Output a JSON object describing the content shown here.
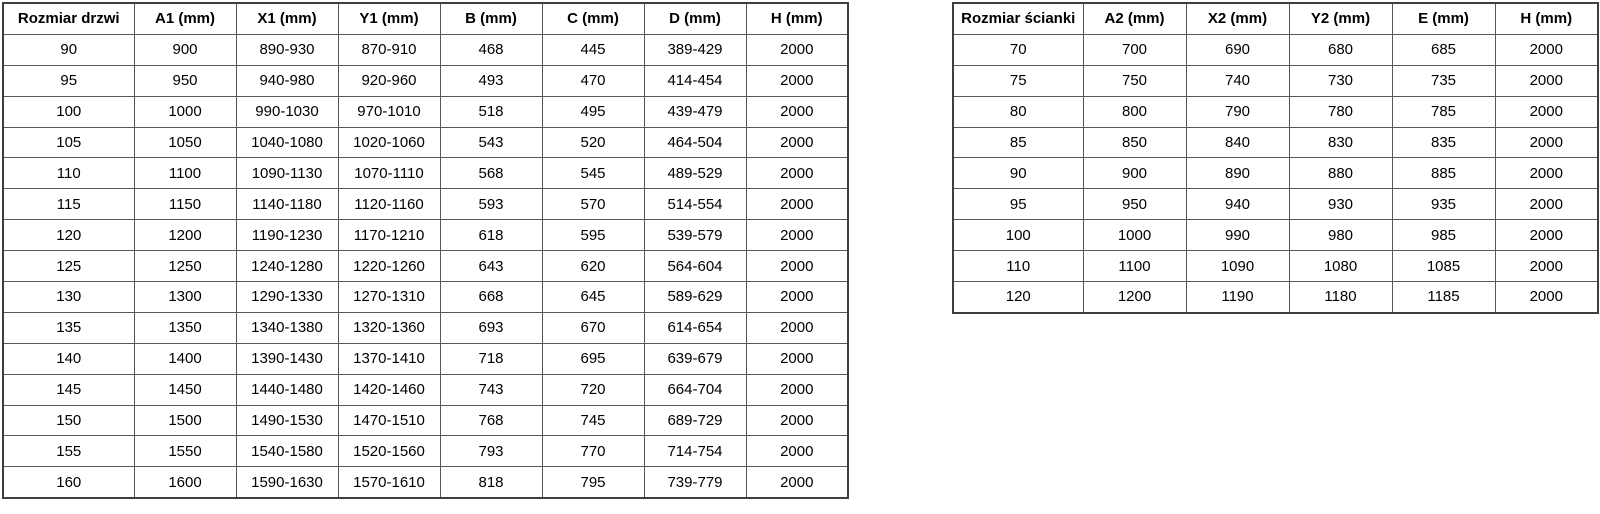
{
  "colors": {
    "background": "#ffffff",
    "text": "#000000",
    "inner_border": "#595959",
    "outer_border": "#3f3f3f"
  },
  "tables": {
    "doors": {
      "title": "Rozmiar drzwi",
      "columns": [
        "Rozmiar drzwi",
        "A1 (mm)",
        "X1 (mm)",
        "Y1 (mm)",
        "B (mm)",
        "C (mm)",
        "D (mm)",
        "H (mm)"
      ],
      "rows": [
        [
          "90",
          "900",
          "890-930",
          "870-910",
          "468",
          "445",
          "389-429",
          "2000"
        ],
        [
          "95",
          "950",
          "940-980",
          "920-960",
          "493",
          "470",
          "414-454",
          "2000"
        ],
        [
          "100",
          "1000",
          "990-1030",
          "970-1010",
          "518",
          "495",
          "439-479",
          "2000"
        ],
        [
          "105",
          "1050",
          "1040-1080",
          "1020-1060",
          "543",
          "520",
          "464-504",
          "2000"
        ],
        [
          "110",
          "1100",
          "1090-1130",
          "1070-1110",
          "568",
          "545",
          "489-529",
          "2000"
        ],
        [
          "115",
          "1150",
          "1140-1180",
          "1120-1160",
          "593",
          "570",
          "514-554",
          "2000"
        ],
        [
          "120",
          "1200",
          "1190-1230",
          "1170-1210",
          "618",
          "595",
          "539-579",
          "2000"
        ],
        [
          "125",
          "1250",
          "1240-1280",
          "1220-1260",
          "643",
          "620",
          "564-604",
          "2000"
        ],
        [
          "130",
          "1300",
          "1290-1330",
          "1270-1310",
          "668",
          "645",
          "589-629",
          "2000"
        ],
        [
          "135",
          "1350",
          "1340-1380",
          "1320-1360",
          "693",
          "670",
          "614-654",
          "2000"
        ],
        [
          "140",
          "1400",
          "1390-1430",
          "1370-1410",
          "718",
          "695",
          "639-679",
          "2000"
        ],
        [
          "145",
          "1450",
          "1440-1480",
          "1420-1460",
          "743",
          "720",
          "664-704",
          "2000"
        ],
        [
          "150",
          "1500",
          "1490-1530",
          "1470-1510",
          "768",
          "745",
          "689-729",
          "2000"
        ],
        [
          "155",
          "1550",
          "1540-1580",
          "1520-1560",
          "793",
          "770",
          "714-754",
          "2000"
        ],
        [
          "160",
          "1600",
          "1590-1630",
          "1570-1610",
          "818",
          "795",
          "739-779",
          "2000"
        ]
      ]
    },
    "walls": {
      "title": "Rozmiar ścianki",
      "columns": [
        "Rozmiar ścianki",
        "A2 (mm)",
        "X2 (mm)",
        "Y2 (mm)",
        "E (mm)",
        "H (mm)"
      ],
      "rows": [
        [
          "70",
          "700",
          "690",
          "680",
          "685",
          "2000"
        ],
        [
          "75",
          "750",
          "740",
          "730",
          "735",
          "2000"
        ],
        [
          "80",
          "800",
          "790",
          "780",
          "785",
          "2000"
        ],
        [
          "85",
          "850",
          "840",
          "830",
          "835",
          "2000"
        ],
        [
          "90",
          "900",
          "890",
          "880",
          "885",
          "2000"
        ],
        [
          "95",
          "950",
          "940",
          "930",
          "935",
          "2000"
        ],
        [
          "100",
          "1000",
          "990",
          "980",
          "985",
          "2000"
        ],
        [
          "110",
          "1100",
          "1090",
          "1080",
          "1085",
          "2000"
        ],
        [
          "120",
          "1200",
          "1190",
          "1180",
          "1185",
          "2000"
        ]
      ]
    }
  }
}
